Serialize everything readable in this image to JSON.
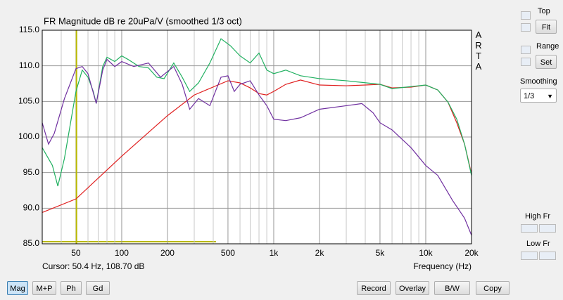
{
  "chart_data": {
    "type": "line",
    "title": "FR Magnitude dB re 20uPa/V (smoothed 1/3 oct)",
    "xlabel": "Frequency (Hz)",
    "side_label": "ARTA",
    "cursor_text": "Cursor: 50.4 Hz, 108.70 dB",
    "cursor_x": 50.4,
    "cursor_color": "#b8b800",
    "xscale": "log",
    "xlim": [
      30,
      20000
    ],
    "ylim": [
      85,
      115
    ],
    "xticks": [
      50,
      100,
      200,
      500,
      {
        "value": 1000,
        "label": "1k"
      },
      {
        "value": 2000,
        "label": "2k"
      },
      {
        "value": 5000,
        "label": "5k"
      },
      {
        "value": 10000,
        "label": "10k"
      },
      {
        "value": 20000,
        "label": "20k"
      }
    ],
    "minor_xgrid": [
      40,
      60,
      70,
      80,
      90,
      300,
      400,
      600,
      700,
      800,
      900,
      3000,
      4000,
      6000,
      7000,
      8000,
      9000
    ],
    "yticks": [
      {
        "value": 85,
        "label": "85.0"
      },
      {
        "value": 90,
        "label": "90.0"
      },
      {
        "value": 95,
        "label": "95.0"
      },
      {
        "value": 100,
        "label": "100.0"
      },
      {
        "value": 105,
        "label": "105.0"
      },
      {
        "value": 110,
        "label": "110.0"
      },
      {
        "value": 115,
        "label": "115.0"
      }
    ],
    "grid": true,
    "series": [
      {
        "color": "#e02020",
        "x": [
          30,
          50,
          100,
          200,
          300,
          500,
          600,
          700,
          800,
          900,
          1000,
          1200,
          1500,
          2000,
          3000,
          4000,
          5000,
          6000,
          8000,
          10000,
          12000,
          14000,
          16000,
          18000,
          20000
        ],
        "values": [
          89.4,
          91.3,
          97.3,
          103.0,
          105.9,
          107.9,
          107.6,
          106.9,
          106.1,
          105.9,
          106.4,
          107.4,
          108.0,
          107.3,
          107.2,
          107.3,
          107.4,
          106.9,
          107.0,
          107.3,
          106.6,
          104.9,
          102.0,
          99.0,
          94.8
        ]
      },
      {
        "color": "#20b060",
        "x": [
          30,
          35,
          38,
          42,
          50,
          55,
          60,
          65,
          68,
          75,
          80,
          90,
          100,
          110,
          130,
          150,
          170,
          190,
          220,
          250,
          280,
          320,
          380,
          450,
          520,
          600,
          700,
          800,
          900,
          1000,
          1200,
          1500,
          2000,
          3000,
          5000,
          6000,
          10000,
          12000,
          14000,
          16000,
          18000,
          20000
        ],
        "values": [
          98.5,
          96.0,
          93.1,
          97.0,
          106.4,
          109.4,
          108.4,
          106.4,
          104.7,
          109.9,
          111.2,
          110.6,
          111.4,
          110.9,
          109.9,
          109.7,
          108.4,
          108.2,
          110.4,
          108.4,
          106.4,
          107.6,
          110.4,
          113.8,
          112.8,
          111.4,
          110.4,
          111.8,
          109.4,
          108.9,
          109.4,
          108.6,
          108.2,
          107.9,
          107.4,
          106.8,
          107.3,
          106.6,
          104.9,
          102.5,
          99.0,
          94.6
        ]
      },
      {
        "color": "#7030a0",
        "x": [
          30,
          33,
          36,
          42,
          50,
          55,
          60,
          68,
          75,
          80,
          90,
          100,
          120,
          150,
          180,
          220,
          250,
          280,
          320,
          380,
          450,
          500,
          550,
          600,
          700,
          800,
          900,
          1000,
          1200,
          1500,
          2000,
          3000,
          3800,
          4500,
          5000,
          6000,
          8000,
          10000,
          12000,
          15000,
          18000,
          20000
        ],
        "values": [
          102.0,
          99.0,
          100.5,
          105.4,
          109.6,
          109.9,
          108.9,
          104.7,
          109.4,
          110.9,
          109.9,
          110.6,
          109.9,
          110.4,
          108.4,
          109.9,
          107.4,
          103.9,
          105.4,
          104.4,
          108.4,
          108.6,
          106.4,
          107.4,
          107.9,
          105.9,
          104.4,
          102.5,
          102.3,
          102.7,
          103.9,
          104.4,
          104.7,
          103.4,
          102.0,
          101.0,
          98.5,
          96.0,
          94.6,
          91.1,
          88.6,
          86.2
        ]
      }
    ]
  },
  "ui": {
    "top": "Top",
    "fit": "Fit",
    "range": "Range",
    "set": "Set",
    "smoothing": "Smoothing",
    "smoothing_value": "1/3",
    "high_fr": "High Fr",
    "low_fr": "Low Fr",
    "buttons": [
      "Mag",
      "M+P",
      "Ph",
      "Gd",
      "Record",
      "Overlay",
      "B/W",
      "Copy"
    ]
  }
}
